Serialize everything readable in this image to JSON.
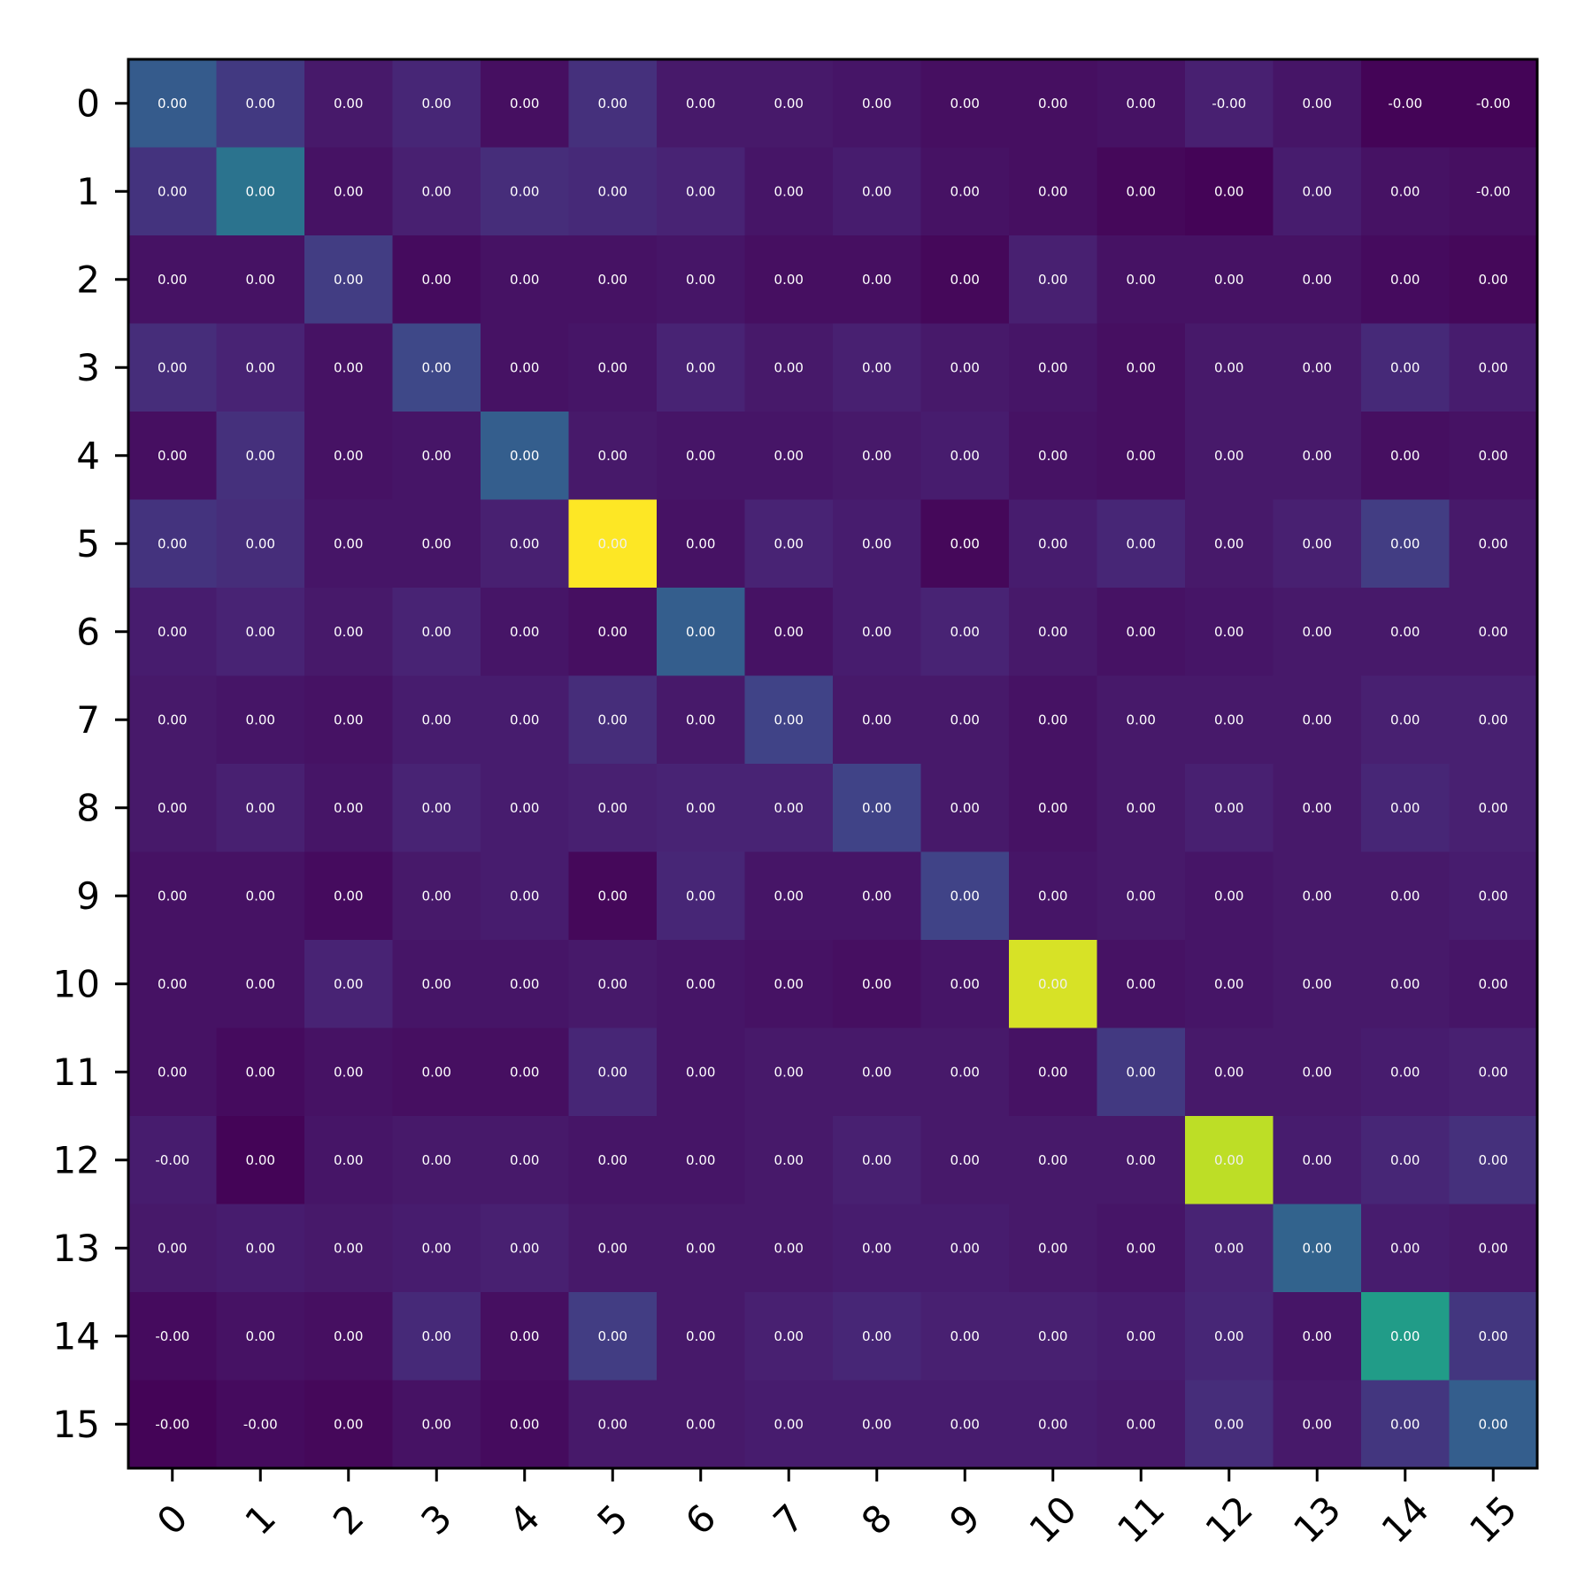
{
  "chart_data": {
    "type": "heatmap",
    "title": "",
    "xlabel": "",
    "ylabel": "",
    "x_categories": [
      "0",
      "1",
      "2",
      "3",
      "4",
      "5",
      "6",
      "7",
      "8",
      "9",
      "10",
      "11",
      "12",
      "13",
      "14",
      "15"
    ],
    "y_categories": [
      "0",
      "1",
      "2",
      "3",
      "4",
      "5",
      "6",
      "7",
      "8",
      "9",
      "10",
      "11",
      "12",
      "13",
      "14",
      "15"
    ],
    "colormap": "viridis",
    "value_range": [
      0,
      1
    ],
    "intensity": [
      [
        0.29,
        0.17,
        0.07,
        0.11,
        0.04,
        0.14,
        0.07,
        0.07,
        0.06,
        0.04,
        0.04,
        0.05,
        0.09,
        0.06,
        0.01,
        0.01
      ],
      [
        0.15,
        0.38,
        0.05,
        0.09,
        0.13,
        0.12,
        0.1,
        0.06,
        0.08,
        0.05,
        0.04,
        0.02,
        0.01,
        0.08,
        0.05,
        0.04
      ],
      [
        0.05,
        0.05,
        0.18,
        0.03,
        0.05,
        0.05,
        0.06,
        0.04,
        0.04,
        0.02,
        0.09,
        0.05,
        0.05,
        0.05,
        0.03,
        0.02
      ],
      [
        0.13,
        0.1,
        0.05,
        0.22,
        0.05,
        0.06,
        0.1,
        0.07,
        0.09,
        0.07,
        0.06,
        0.04,
        0.07,
        0.07,
        0.12,
        0.08
      ],
      [
        0.04,
        0.14,
        0.05,
        0.06,
        0.3,
        0.07,
        0.06,
        0.06,
        0.07,
        0.08,
        0.05,
        0.04,
        0.07,
        0.07,
        0.04,
        0.05
      ],
      [
        0.15,
        0.13,
        0.06,
        0.06,
        0.09,
        1.0,
        0.05,
        0.1,
        0.08,
        0.02,
        0.08,
        0.11,
        0.07,
        0.09,
        0.18,
        0.07
      ],
      [
        0.08,
        0.1,
        0.07,
        0.1,
        0.06,
        0.04,
        0.3,
        0.05,
        0.08,
        0.1,
        0.07,
        0.05,
        0.06,
        0.07,
        0.07,
        0.07
      ],
      [
        0.07,
        0.06,
        0.05,
        0.08,
        0.08,
        0.13,
        0.07,
        0.2,
        0.07,
        0.07,
        0.05,
        0.07,
        0.07,
        0.07,
        0.09,
        0.09
      ],
      [
        0.07,
        0.09,
        0.06,
        0.1,
        0.08,
        0.09,
        0.1,
        0.1,
        0.2,
        0.07,
        0.05,
        0.07,
        0.09,
        0.07,
        0.11,
        0.09
      ],
      [
        0.05,
        0.05,
        0.03,
        0.07,
        0.08,
        0.02,
        0.11,
        0.06,
        0.06,
        0.2,
        0.06,
        0.07,
        0.06,
        0.07,
        0.07,
        0.08
      ],
      [
        0.05,
        0.05,
        0.1,
        0.06,
        0.06,
        0.07,
        0.06,
        0.05,
        0.04,
        0.06,
        0.94,
        0.05,
        0.06,
        0.07,
        0.07,
        0.06
      ],
      [
        0.05,
        0.03,
        0.05,
        0.04,
        0.04,
        0.11,
        0.06,
        0.07,
        0.07,
        0.07,
        0.05,
        0.17,
        0.07,
        0.07,
        0.08,
        0.09
      ],
      [
        0.08,
        0.01,
        0.06,
        0.07,
        0.07,
        0.06,
        0.06,
        0.07,
        0.09,
        0.07,
        0.07,
        0.07,
        0.9,
        0.08,
        0.11,
        0.14
      ],
      [
        0.07,
        0.08,
        0.07,
        0.08,
        0.09,
        0.07,
        0.07,
        0.07,
        0.08,
        0.08,
        0.07,
        0.06,
        0.1,
        0.32,
        0.08,
        0.07
      ],
      [
        0.03,
        0.05,
        0.04,
        0.12,
        0.04,
        0.18,
        0.07,
        0.09,
        0.11,
        0.09,
        0.09,
        0.08,
        0.11,
        0.06,
        0.55,
        0.16
      ],
      [
        0.01,
        0.03,
        0.02,
        0.05,
        0.03,
        0.07,
        0.07,
        0.08,
        0.08,
        0.08,
        0.08,
        0.07,
        0.13,
        0.07,
        0.16,
        0.3
      ]
    ],
    "labels": [
      [
        "0.00",
        "0.00",
        "0.00",
        "0.00",
        "0.00",
        "0.00",
        "0.00",
        "0.00",
        "0.00",
        "0.00",
        "0.00",
        "0.00",
        "-0.00",
        "0.00",
        "-0.00",
        "-0.00"
      ],
      [
        "0.00",
        "0.00",
        "0.00",
        "0.00",
        "0.00",
        "0.00",
        "0.00",
        "0.00",
        "0.00",
        "0.00",
        "0.00",
        "0.00",
        "0.00",
        "0.00",
        "0.00",
        "-0.00"
      ],
      [
        "0.00",
        "0.00",
        "0.00",
        "0.00",
        "0.00",
        "0.00",
        "0.00",
        "0.00",
        "0.00",
        "0.00",
        "0.00",
        "0.00",
        "0.00",
        "0.00",
        "0.00",
        "0.00"
      ],
      [
        "0.00",
        "0.00",
        "0.00",
        "0.00",
        "0.00",
        "0.00",
        "0.00",
        "0.00",
        "0.00",
        "0.00",
        "0.00",
        "0.00",
        "0.00",
        "0.00",
        "0.00",
        "0.00"
      ],
      [
        "0.00",
        "0.00",
        "0.00",
        "0.00",
        "0.00",
        "0.00",
        "0.00",
        "0.00",
        "0.00",
        "0.00",
        "0.00",
        "0.00",
        "0.00",
        "0.00",
        "0.00",
        "0.00"
      ],
      [
        "0.00",
        "0.00",
        "0.00",
        "0.00",
        "0.00",
        "0.00",
        "0.00",
        "0.00",
        "0.00",
        "0.00",
        "0.00",
        "0.00",
        "0.00",
        "0.00",
        "0.00",
        "0.00"
      ],
      [
        "0.00",
        "0.00",
        "0.00",
        "0.00",
        "0.00",
        "0.00",
        "0.00",
        "0.00",
        "0.00",
        "0.00",
        "0.00",
        "0.00",
        "0.00",
        "0.00",
        "0.00",
        "0.00"
      ],
      [
        "0.00",
        "0.00",
        "0.00",
        "0.00",
        "0.00",
        "0.00",
        "0.00",
        "0.00",
        "0.00",
        "0.00",
        "0.00",
        "0.00",
        "0.00",
        "0.00",
        "0.00",
        "0.00"
      ],
      [
        "0.00",
        "0.00",
        "0.00",
        "0.00",
        "0.00",
        "0.00",
        "0.00",
        "0.00",
        "0.00",
        "0.00",
        "0.00",
        "0.00",
        "0.00",
        "0.00",
        "0.00",
        "0.00"
      ],
      [
        "0.00",
        "0.00",
        "0.00",
        "0.00",
        "0.00",
        "0.00",
        "0.00",
        "0.00",
        "0.00",
        "0.00",
        "0.00",
        "0.00",
        "0.00",
        "0.00",
        "0.00",
        "0.00"
      ],
      [
        "0.00",
        "0.00",
        "0.00",
        "0.00",
        "0.00",
        "0.00",
        "0.00",
        "0.00",
        "0.00",
        "0.00",
        "0.00",
        "0.00",
        "0.00",
        "0.00",
        "0.00",
        "0.00"
      ],
      [
        "0.00",
        "0.00",
        "0.00",
        "0.00",
        "0.00",
        "0.00",
        "0.00",
        "0.00",
        "0.00",
        "0.00",
        "0.00",
        "0.00",
        "0.00",
        "0.00",
        "0.00",
        "0.00"
      ],
      [
        "-0.00",
        "0.00",
        "0.00",
        "0.00",
        "0.00",
        "0.00",
        "0.00",
        "0.00",
        "0.00",
        "0.00",
        "0.00",
        "0.00",
        "0.00",
        "0.00",
        "0.00",
        "0.00"
      ],
      [
        "0.00",
        "0.00",
        "0.00",
        "0.00",
        "0.00",
        "0.00",
        "0.00",
        "0.00",
        "0.00",
        "0.00",
        "0.00",
        "0.00",
        "0.00",
        "0.00",
        "0.00",
        "0.00"
      ],
      [
        "-0.00",
        "0.00",
        "0.00",
        "0.00",
        "0.00",
        "0.00",
        "0.00",
        "0.00",
        "0.00",
        "0.00",
        "0.00",
        "0.00",
        "0.00",
        "0.00",
        "0.00",
        "0.00"
      ],
      [
        "-0.00",
        "-0.00",
        "0.00",
        "0.00",
        "0.00",
        "0.00",
        "0.00",
        "0.00",
        "0.00",
        "0.00",
        "0.00",
        "0.00",
        "0.00",
        "0.00",
        "0.00",
        "0.00"
      ]
    ],
    "grid": false,
    "legend": "none"
  }
}
